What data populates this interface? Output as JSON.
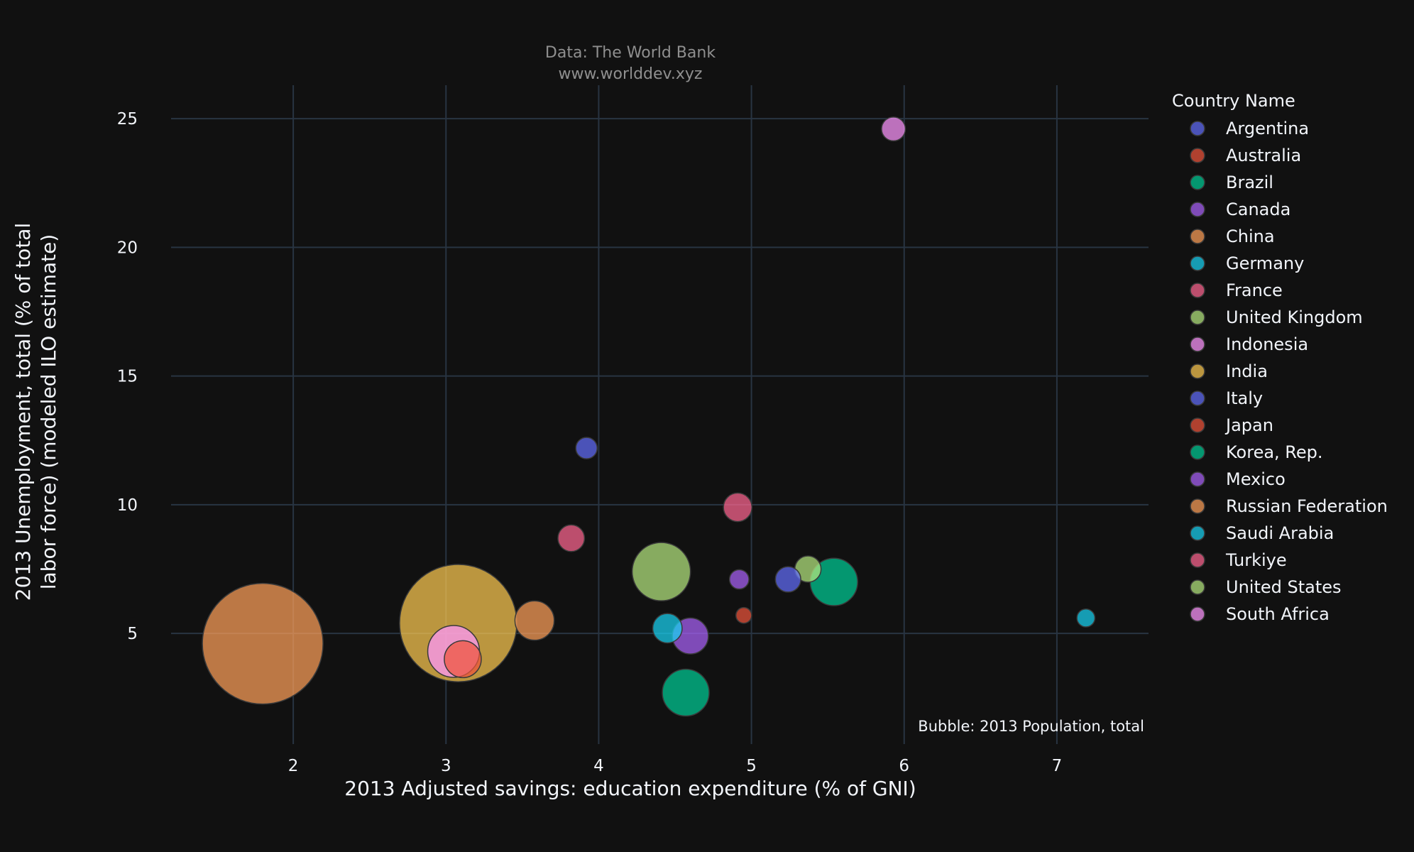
{
  "chart_data": {
    "type": "scatter",
    "subtitle_lines": [
      "Data: The World Bank",
      "www.worlddev.xyz"
    ],
    "xlabel": "2013 Adjusted savings: education expenditure (% of GNI)",
    "ylabel_lines": [
      "2013 Unemployment, total (% of total",
      "labor force) (modeled ILO estimate)"
    ],
    "size_note": "Bubble: 2013 Population, total",
    "legend_title": "Country Name",
    "legend_placement": "right",
    "xlim": [
      1.2,
      7.6
    ],
    "ylim": [
      0.7,
      26.3
    ],
    "xticks": [
      2,
      3,
      4,
      5,
      6,
      7
    ],
    "yticks": [
      5,
      10,
      15,
      20,
      25
    ],
    "grid": true,
    "series": [
      {
        "name": "Argentina",
        "color": "#636efa",
        "x": 3.92,
        "y": 12.2,
        "pop": 42.5
      },
      {
        "name": "Australia",
        "color": "#EF553B",
        "x": 4.95,
        "y": 5.7,
        "pop": 23.1
      },
      {
        "name": "Brazil",
        "color": "#00cc96",
        "x": 4.57,
        "y": 2.7,
        "pop": 204.3
      },
      {
        "name": "Canada",
        "color": "#ab63fa",
        "x": 4.92,
        "y": 7.1,
        "pop": 35.1
      },
      {
        "name": "China",
        "color": "#FFA15A",
        "x": 1.8,
        "y": 4.6,
        "pop": 1357.4
      },
      {
        "name": "Germany",
        "color": "#19d3f3",
        "x": 4.45,
        "y": 5.2,
        "pop": 80.6
      },
      {
        "name": "France",
        "color": "#FF6692",
        "x": 3.82,
        "y": 8.7,
        "pop": 65.9
      },
      {
        "name": "United Kingdom",
        "color": "#B6E880",
        "x": 5.37,
        "y": 7.5,
        "pop": 64.1
      },
      {
        "name": "Indonesia",
        "color": "#FF97FF",
        "x": 5.93,
        "y": 24.6,
        "pop": 52.9
      },
      {
        "name": "India",
        "color": "#FECB52",
        "x": 3.08,
        "y": 5.4,
        "pop": 1280.8
      },
      {
        "name": "Italy",
        "color": "#636efa",
        "x": 5.24,
        "y": 7.1,
        "pop": 60.2
      },
      {
        "name": "Japan",
        "color": "#EF553B",
        "x": 3.11,
        "y": 4.0,
        "pop": 127.4
      },
      {
        "name": "Korea, Rep.",
        "color": "#00cc96",
        "x": 5.54,
        "y": 7.0,
        "pop": 210.0
      },
      {
        "name": "Mexico",
        "color": "#ab63fa",
        "x": 4.6,
        "y": 4.9,
        "pop": 120.8
      },
      {
        "name": "Russian Federation",
        "color": "#FFA15A",
        "x": 3.58,
        "y": 5.5,
        "pop": 143.5
      },
      {
        "name": "Saudi Arabia",
        "color": "#19d3f3",
        "x": 7.19,
        "y": 5.6,
        "pop": 30.1
      },
      {
        "name": "Turkiye",
        "color": "#FF6692",
        "x": 4.91,
        "y": 9.9,
        "pop": 75.8
      },
      {
        "name": "United States",
        "color": "#B6E880",
        "x": 4.41,
        "y": 7.4,
        "pop": 316.1
      },
      {
        "name": "South Africa",
        "color": "#FF97FF",
        "x": 3.05,
        "y": 4.3,
        "pop": 249.9
      }
    ]
  }
}
